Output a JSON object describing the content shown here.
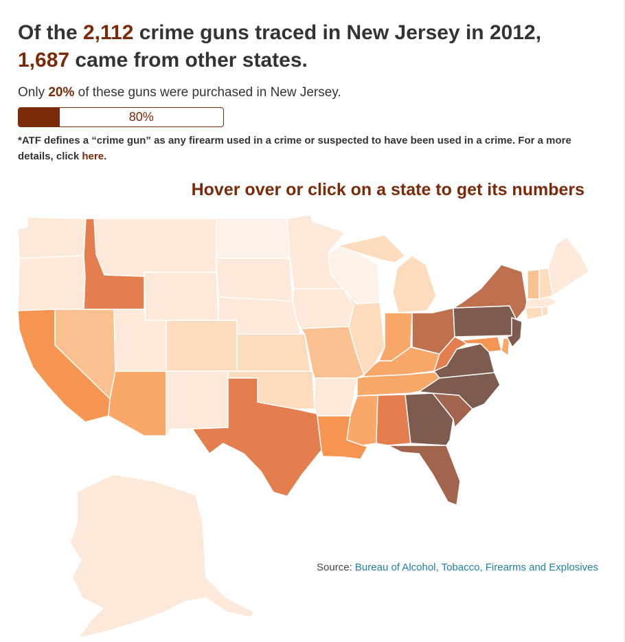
{
  "headline": {
    "pre": "Of the ",
    "total": "2,112",
    "mid": " crime guns traced in New Jersey in 2012,",
    "outside": "1,687",
    "post": " came from other states."
  },
  "subhead": {
    "pre": "Only ",
    "pct": "20%",
    "post": " of these guns were purchased in New Jersey."
  },
  "bar": {
    "fraction_in_state": 0.2,
    "label": "80%"
  },
  "note": {
    "text": "*ATF defines a “crime gun” as any firearm used in a crime or suspected to have been used in a crime. For a more details, click ",
    "link": "here",
    "end": "."
  },
  "instruction": "Hover over or click on a state to get its numbers",
  "source": {
    "label": "Source: ",
    "link": "Bureau of Alcohol, Tobacco, Firearms and Explosives"
  },
  "colors": {
    "accent": "#7a2a08",
    "link": "#1f7fa8",
    "scale": [
      "#fdf2e9",
      "#fde9d9",
      "#fcdcbd",
      "#fbc08f",
      "#f9a86a",
      "#f69552",
      "#e57e4e",
      "#bf704e",
      "#a3644e",
      "#7d5b4e"
    ]
  },
  "states": [
    {
      "name": "washington",
      "level": 1
    },
    {
      "name": "oregon",
      "level": 1
    },
    {
      "name": "california",
      "level": 5
    },
    {
      "name": "idaho",
      "level": 6
    },
    {
      "name": "nevada",
      "level": 3
    },
    {
      "name": "montana",
      "level": 1
    },
    {
      "name": "wyoming",
      "level": 1
    },
    {
      "name": "utah",
      "level": 1
    },
    {
      "name": "arizona",
      "level": 4
    },
    {
      "name": "colorado",
      "level": 2
    },
    {
      "name": "new-mexico",
      "level": 1
    },
    {
      "name": "north-dakota",
      "level": 0
    },
    {
      "name": "south-dakota",
      "level": 1
    },
    {
      "name": "nebraska",
      "level": 1
    },
    {
      "name": "kansas",
      "level": 2
    },
    {
      "name": "oklahoma",
      "level": 2
    },
    {
      "name": "texas",
      "level": 6
    },
    {
      "name": "minnesota",
      "level": 1
    },
    {
      "name": "iowa",
      "level": 1
    },
    {
      "name": "missouri",
      "level": 3
    },
    {
      "name": "arkansas",
      "level": 1
    },
    {
      "name": "louisiana",
      "level": 5
    },
    {
      "name": "wisconsin",
      "level": 0
    },
    {
      "name": "illinois",
      "level": 2
    },
    {
      "name": "michigan",
      "level": 2
    },
    {
      "name": "indiana",
      "level": 4
    },
    {
      "name": "ohio",
      "level": 7
    },
    {
      "name": "kentucky",
      "level": 4
    },
    {
      "name": "tennessee",
      "level": 4
    },
    {
      "name": "mississippi",
      "level": 4
    },
    {
      "name": "alabama",
      "level": 6
    },
    {
      "name": "georgia",
      "level": 9
    },
    {
      "name": "florida",
      "level": 8
    },
    {
      "name": "south-carolina",
      "level": 8
    },
    {
      "name": "north-carolina",
      "level": 9
    },
    {
      "name": "virginia",
      "level": 9
    },
    {
      "name": "west-virginia",
      "level": 6
    },
    {
      "name": "pennsylvania",
      "level": 9
    },
    {
      "name": "new-york",
      "level": 7
    },
    {
      "name": "maryland",
      "level": 5
    },
    {
      "name": "delaware",
      "level": 4
    },
    {
      "name": "new-jersey",
      "level": 9
    },
    {
      "name": "connecticut",
      "level": 2
    },
    {
      "name": "rhode-island",
      "level": 2
    },
    {
      "name": "massachusetts",
      "level": 1
    },
    {
      "name": "vermont",
      "level": 3
    },
    {
      "name": "new-hampshire",
      "level": 2
    },
    {
      "name": "maine",
      "level": 1
    },
    {
      "name": "alaska",
      "level": 1
    }
  ]
}
